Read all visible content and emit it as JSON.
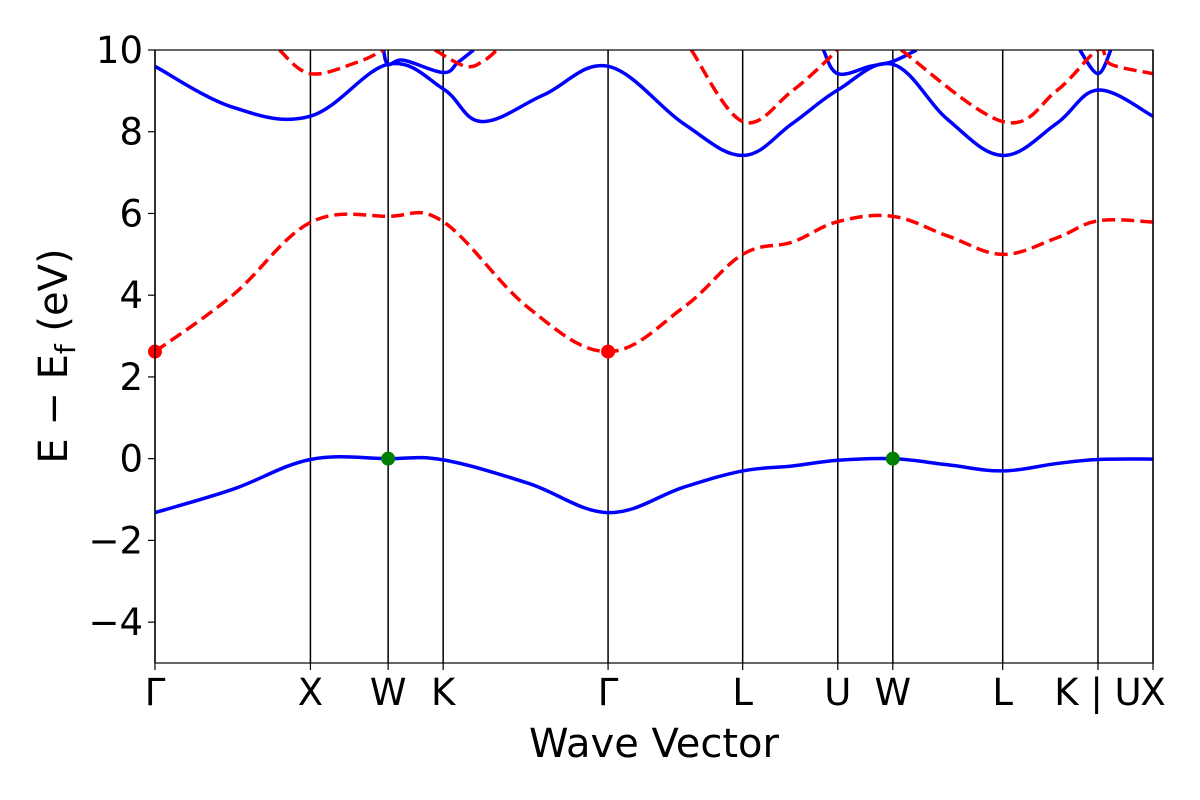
{
  "chart_data": {
    "type": "line",
    "xlabel": "Wave Vector",
    "ylabel": "E − E",
    "ylabel_sub": "f",
    "ylabel_unit": " (eV)",
    "ylim": [
      -5,
      10
    ],
    "yticks": [
      -4,
      -2,
      0,
      2,
      4,
      6,
      8,
      10
    ],
    "ytick_labels": [
      "−4",
      "−2",
      "0",
      "2",
      "4",
      "6",
      "8",
      "10"
    ],
    "grid": false,
    "kpoints": [
      {
        "label": "Γ",
        "x": 0.0
      },
      {
        "label": "X",
        "x": 1.0
      },
      {
        "label": "W",
        "x": 1.5
      },
      {
        "label": "K",
        "x": 1.854
      },
      {
        "label": "Γ",
        "x": 2.915
      },
      {
        "label": "L",
        "x": 3.781
      },
      {
        "label": "U",
        "x": 4.393
      },
      {
        "label": "W",
        "x": 4.747
      },
      {
        "label": "L",
        "x": 5.454
      },
      {
        "label": "K | U",
        "x": 6.067
      },
      {
        "label": "X",
        "x": 6.421
      }
    ],
    "xlim": [
      0,
      6.421
    ],
    "series": [
      {
        "style": "solid",
        "color": "#0000ff",
        "points": [
          [
            0,
            -1.32
          ],
          [
            0.5,
            -0.75
          ],
          [
            1.0,
            -0.02
          ],
          [
            1.5,
            0.0
          ],
          [
            1.854,
            -0.03
          ],
          [
            2.4,
            -0.6
          ],
          [
            2.915,
            -1.32
          ],
          [
            3.4,
            -0.7
          ],
          [
            3.781,
            -0.3
          ],
          [
            4.1,
            -0.18
          ],
          [
            4.393,
            -0.04
          ],
          [
            4.747,
            0.0
          ],
          [
            5.1,
            -0.15
          ],
          [
            5.454,
            -0.3
          ],
          [
            5.8,
            -0.12
          ],
          [
            6.067,
            -0.02
          ],
          [
            6.421,
            -0.01
          ]
        ]
      },
      {
        "style": "dashed",
        "color": "#ff0000",
        "points": [
          [
            0,
            2.62
          ],
          [
            0.5,
            4.0
          ],
          [
            1.0,
            5.78
          ],
          [
            1.5,
            5.93
          ],
          [
            1.854,
            5.8
          ],
          [
            2.4,
            3.7
          ],
          [
            2.915,
            2.62
          ],
          [
            3.4,
            3.7
          ],
          [
            3.781,
            5.0
          ],
          [
            4.1,
            5.3
          ],
          [
            4.393,
            5.8
          ],
          [
            4.747,
            5.93
          ],
          [
            5.1,
            5.45
          ],
          [
            5.454,
            5.0
          ],
          [
            5.8,
            5.4
          ],
          [
            6.067,
            5.82
          ],
          [
            6.421,
            5.79
          ]
        ]
      },
      {
        "style": "solid",
        "color": "#0000ff",
        "points": [
          [
            0,
            9.6
          ],
          [
            0.5,
            8.6
          ],
          [
            1.0,
            8.38
          ],
          [
            1.5,
            9.65
          ],
          [
            1.854,
            9.05
          ],
          [
            2.1,
            8.25
          ],
          [
            2.5,
            8.9
          ],
          [
            2.915,
            9.6
          ],
          [
            3.4,
            8.2
          ],
          [
            3.781,
            7.42
          ],
          [
            4.1,
            8.2
          ],
          [
            4.393,
            9.02
          ],
          [
            4.747,
            9.65
          ],
          [
            5.1,
            8.3
          ],
          [
            5.454,
            7.42
          ],
          [
            5.8,
            8.2
          ],
          [
            6.067,
            9.02
          ],
          [
            6.421,
            8.38
          ]
        ]
      },
      {
        "style": "solid",
        "color": "#0000ff",
        "points": [
          [
            1.47,
            10.0
          ],
          [
            1.5,
            9.65
          ],
          [
            1.6,
            9.75
          ],
          [
            1.854,
            9.45
          ],
          [
            1.95,
            9.7
          ],
          [
            2.05,
            10.0
          ]
        ]
      },
      {
        "style": "solid",
        "color": "#0000ff",
        "points": [
          [
            4.3,
            10.0
          ],
          [
            4.393,
            9.42
          ],
          [
            4.6,
            9.6
          ],
          [
            4.747,
            9.72
          ],
          [
            4.9,
            10.0
          ]
        ]
      },
      {
        "style": "solid",
        "color": "#0000ff",
        "points": [
          [
            5.95,
            10.0
          ],
          [
            6.067,
            9.42
          ],
          [
            6.15,
            10.0
          ]
        ]
      },
      {
        "style": "dashed",
        "color": "#ff0000",
        "points": [
          [
            0.8,
            10.0
          ],
          [
            1.0,
            9.42
          ],
          [
            1.3,
            9.7
          ],
          [
            1.47,
            10.0
          ]
        ]
      },
      {
        "style": "dashed",
        "color": "#ff0000",
        "points": [
          [
            1.8,
            10.0
          ],
          [
            2.0,
            9.6
          ],
          [
            2.12,
            9.75
          ],
          [
            2.2,
            10.0
          ]
        ]
      },
      {
        "style": "dashed",
        "color": "#ff0000",
        "points": [
          [
            3.45,
            10.0
          ],
          [
            3.781,
            8.25
          ],
          [
            4.1,
            9.0
          ],
          [
            4.393,
            10.0
          ]
        ]
      },
      {
        "style": "dashed",
        "color": "#ff0000",
        "points": [
          [
            4.8,
            10.0
          ],
          [
            5.454,
            8.25
          ],
          [
            5.8,
            9.0
          ],
          [
            6.067,
            10.0
          ],
          [
            6.15,
            9.65
          ],
          [
            6.421,
            9.42
          ]
        ]
      }
    ],
    "markers": [
      {
        "x": 0.0,
        "y": 2.62,
        "color": "#ff0000"
      },
      {
        "x": 2.915,
        "y": 2.62,
        "color": "#ff0000"
      },
      {
        "x": 1.5,
        "y": 0.0,
        "color": "#008000"
      },
      {
        "x": 4.747,
        "y": 0.0,
        "color": "#008000"
      }
    ]
  }
}
